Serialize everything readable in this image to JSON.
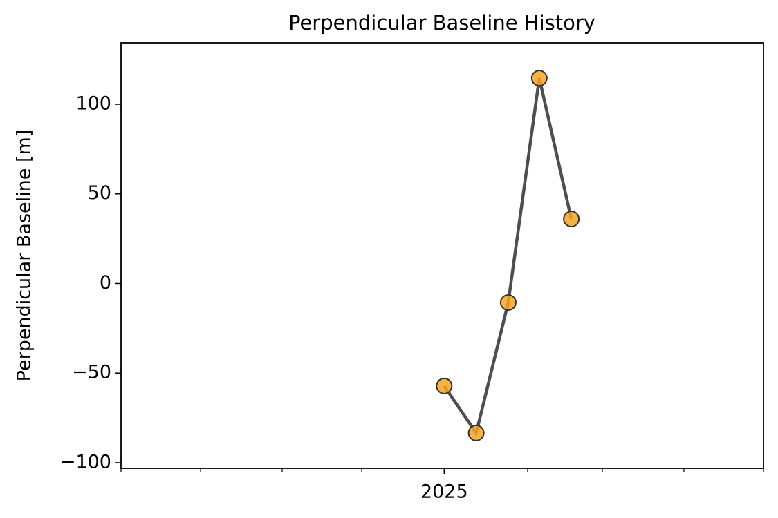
{
  "chart_data": {
    "type": "line",
    "title": "Perpendicular Baseline History",
    "y_label": "Perpendicular Baseline [m]",
    "x": [
      2025.0,
      2025.033,
      2025.066,
      2025.098,
      2025.131
    ],
    "series": [
      {
        "values": [
          -57.2,
          -83.4,
          -10.6,
          114.6,
          36.0
        ],
        "color": "#f5a623",
        "line_color": "#444444"
      }
    ],
    "xlim": [
      2024.667,
      2025.329
    ],
    "xticks": [
      2025
    ],
    "xminorticks": [
      2024.667,
      2024.749,
      2024.833,
      2024.915,
      2025.086,
      2025.163,
      2025.247,
      2025.329
    ],
    "ylim": [
      -103.1,
      134.3
    ],
    "yticks": [
      {
        "value": -100,
        "label": "−100"
      },
      {
        "value": -50,
        "label": "−50"
      },
      0,
      50,
      100
    ],
    "grid": false
  }
}
